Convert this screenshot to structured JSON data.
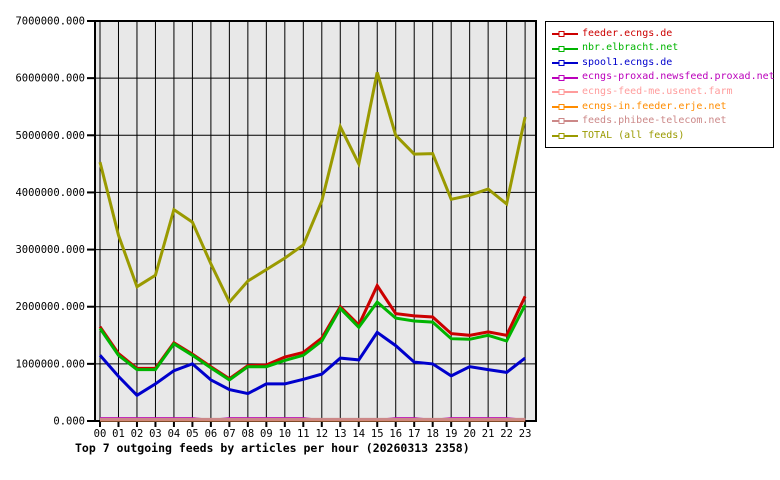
{
  "chart_data": {
    "type": "line",
    "title": "Top 7 outgoing feeds by articles per hour (20260313 2358)",
    "xlabel": "",
    "ylabel": "",
    "x": [
      "00",
      "01",
      "02",
      "03",
      "04",
      "05",
      "06",
      "07",
      "08",
      "09",
      "10",
      "11",
      "12",
      "13",
      "14",
      "15",
      "16",
      "17",
      "18",
      "19",
      "20",
      "21",
      "22",
      "23"
    ],
    "ylim": [
      0,
      7000000
    ],
    "y_ticks": [
      "0.000",
      "1000000.000",
      "2000000.000",
      "3000000.000",
      "4000000.000",
      "5000000.000",
      "6000000.000",
      "7000000.000"
    ],
    "y_tick_values": [
      0,
      1000000,
      2000000,
      3000000,
      4000000,
      5000000,
      6000000,
      7000000
    ],
    "grid": "on",
    "legend_position": "top-right",
    "plot_bg_color": "#e8e8e8",
    "grid_color": "#000000",
    "series": [
      {
        "name": "feeder.ecngs.de",
        "color": "#cc0000",
        "width": 3,
        "values": [
          1650000,
          1180000,
          920000,
          920000,
          1370000,
          1170000,
          950000,
          740000,
          970000,
          980000,
          1120000,
          1200000,
          1450000,
          2000000,
          1680000,
          2370000,
          1880000,
          1840000,
          1820000,
          1530000,
          1500000,
          1560000,
          1500000,
          2180000
        ]
      },
      {
        "name": "nbr.elbracht.net",
        "color": "#00b400",
        "width": 3,
        "values": [
          1620000,
          1150000,
          900000,
          900000,
          1350000,
          1150000,
          930000,
          720000,
          950000,
          950000,
          1060000,
          1150000,
          1400000,
          1970000,
          1640000,
          2080000,
          1800000,
          1750000,
          1730000,
          1440000,
          1430000,
          1500000,
          1400000,
          2030000
        ]
      },
      {
        "name": "spool1.ecngs.de",
        "color": "#0000cc",
        "width": 3,
        "values": [
          1150000,
          780000,
          450000,
          650000,
          880000,
          1000000,
          720000,
          550000,
          480000,
          650000,
          650000,
          730000,
          820000,
          1100000,
          1070000,
          1550000,
          1320000,
          1030000,
          1000000,
          790000,
          950000,
          900000,
          850000,
          1100000
        ]
      },
      {
        "name": "ecngs-proxad.newsfeed.proxad.net",
        "color": "#bb00bb",
        "width": 2,
        "values": [
          50000,
          50000,
          50000,
          50000,
          50000,
          50000,
          20000,
          50000,
          50000,
          50000,
          50000,
          50000,
          15000,
          15000,
          15000,
          15000,
          50000,
          50000,
          20000,
          50000,
          50000,
          50000,
          50000,
          20000
        ]
      },
      {
        "name": "ecngs-feed-me.usenet.farm",
        "color": "#ff9c9c",
        "width": 3,
        "values": [
          18000,
          18000,
          18000,
          18000,
          18000,
          18000,
          18000,
          18000,
          18000,
          18000,
          18000,
          18000,
          18000,
          18000,
          18000,
          18000,
          18000,
          18000,
          18000,
          18000,
          18000,
          18000,
          18000,
          18000
        ]
      },
      {
        "name": "ecngs-in.feeder.erje.net",
        "color": "#ff8c00",
        "width": 3,
        "values": [
          22000,
          22000,
          22000,
          22000,
          22000,
          22000,
          22000,
          22000,
          22000,
          22000,
          22000,
          22000,
          22000,
          22000,
          22000,
          22000,
          22000,
          22000,
          22000,
          22000,
          22000,
          22000,
          22000,
          22000
        ]
      },
      {
        "name": "feeds.phibee-telecom.net",
        "color": "#cc8888",
        "width": 3,
        "values": [
          28000,
          28000,
          28000,
          28000,
          28000,
          28000,
          28000,
          28000,
          28000,
          28000,
          28000,
          28000,
          28000,
          28000,
          28000,
          28000,
          28000,
          28000,
          28000,
          28000,
          28000,
          28000,
          28000,
          28000
        ]
      },
      {
        "name": "TOTAL (all feeds)",
        "color": "#9a9a00",
        "width": 3,
        "values": [
          4530000,
          3250000,
          2350000,
          2550000,
          3700000,
          3480000,
          2750000,
          2080000,
          2450000,
          2650000,
          2850000,
          3080000,
          3850000,
          5150000,
          4500000,
          6100000,
          5000000,
          4670000,
          4680000,
          3880000,
          3950000,
          4060000,
          3800000,
          5320000
        ]
      }
    ]
  }
}
